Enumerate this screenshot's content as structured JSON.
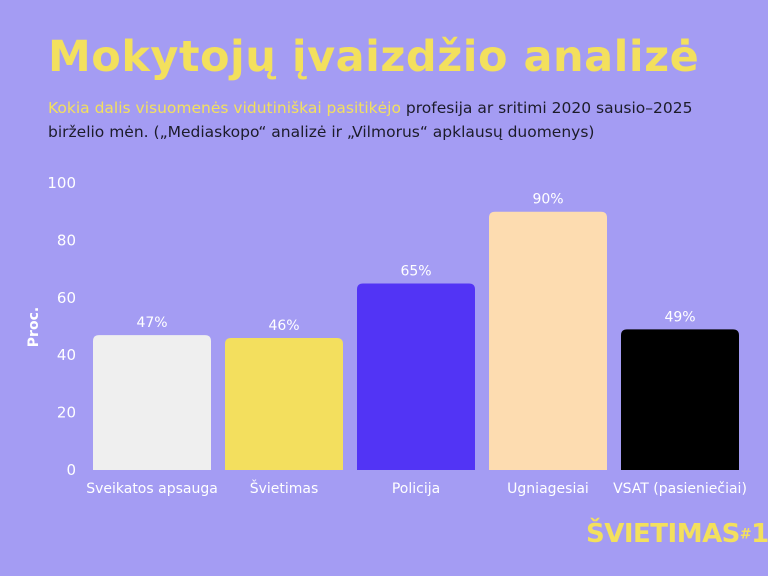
{
  "title": "Mokytojų įvaizdžio analizė",
  "subtitle": {
    "highlight": "Kokia dalis visuomenės vidutiniškai pasitikėjo",
    "rest": " profesija ar sritimi 2020 sausio–2025 birželio mėn. („Mediaskopo“ analizė ir „Vilmorus“ apklausų duomenys)"
  },
  "chart_data": {
    "type": "bar",
    "title": "",
    "xlabel": "",
    "ylabel": "Proc.",
    "ylim": [
      0,
      100
    ],
    "yticks": [
      0,
      20,
      40,
      60,
      80,
      100
    ],
    "grid": false,
    "categories": [
      "Sveikatos apsauga",
      "Švietimas",
      "Policija",
      "Ugniagesiai",
      "VSAT (pasieniečiai)"
    ],
    "values": [
      47,
      46,
      65,
      90,
      49
    ],
    "value_labels": [
      "47%",
      "46%",
      "65%",
      "90%",
      "49%"
    ],
    "colors": [
      "#efefef",
      "#f3df5e",
      "#5234f5",
      "#fddcb0",
      "#000000"
    ]
  },
  "logo": {
    "text": "ŠVIETIMAS",
    "suffix_hash": "#",
    "suffix_one": "1"
  },
  "colors": {
    "background": "#a49cf3",
    "accent": "#f3e05d",
    "text": "#1c1c2a",
    "axis_text": "#ffffff"
  }
}
